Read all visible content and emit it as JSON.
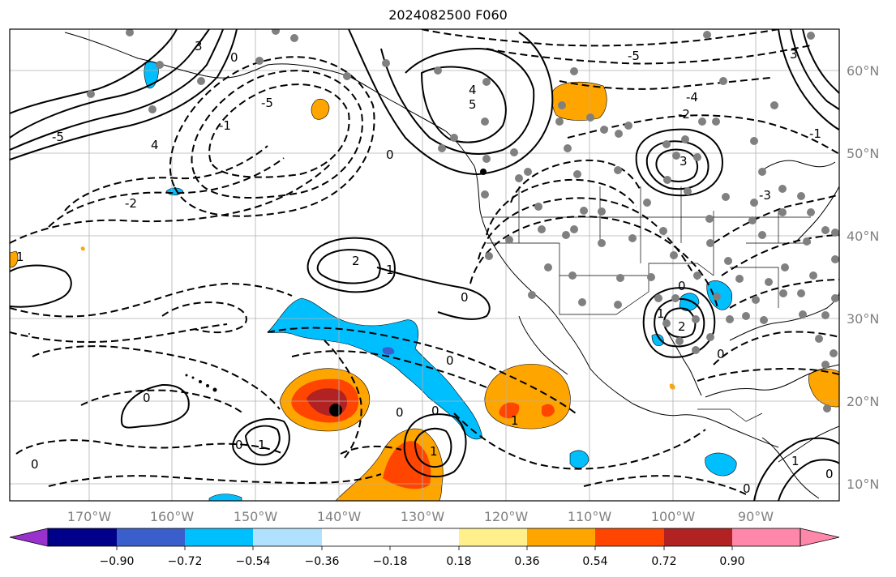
{
  "title": "2024082500 F060",
  "map": {
    "lon_ticks": [
      "170°W",
      "160°W",
      "150°W",
      "140°W",
      "130°W",
      "120°W",
      "110°W",
      "100°W",
      "90°W"
    ],
    "lat_ticks": [
      "60°N",
      "50°N",
      "40°N",
      "30°N",
      "20°N",
      "10°N"
    ],
    "contour_labels": [
      "-5",
      "-4",
      "-3",
      "-2",
      "-1",
      "0",
      "1",
      "2",
      "3",
      "4",
      "5"
    ]
  },
  "colorbar": {
    "colors": [
      "#9932cc",
      "#00008b",
      "#3a5fcd",
      "#00bfff",
      "#b0e2ff",
      "#ffffff",
      "#fff08c",
      "#ffa500",
      "#ff4500",
      "#b22222",
      "#ff88aa"
    ],
    "labels": [
      "−0.90",
      "−0.72",
      "−0.54",
      "−0.36",
      "−0.18",
      "0.18",
      "0.36",
      "0.54",
      "0.72",
      "0.90"
    ]
  },
  "colors": {
    "frame": "#000000",
    "grid": "#b0b0b0",
    "station": "#808080",
    "tick_label": "#808080"
  }
}
